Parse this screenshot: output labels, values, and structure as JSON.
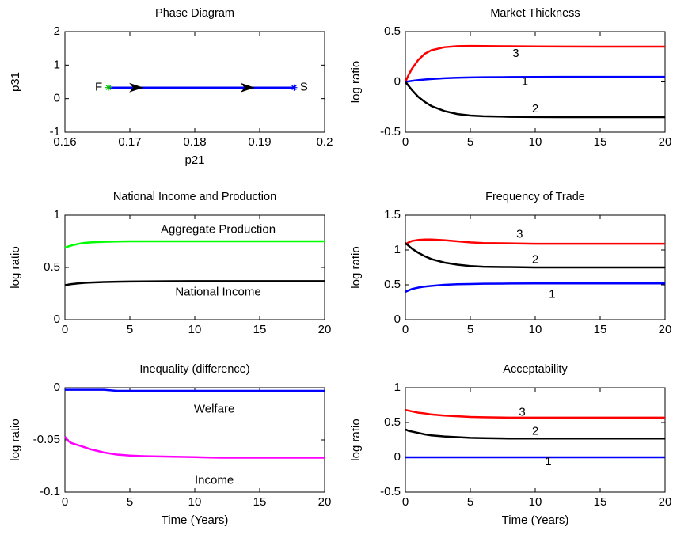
{
  "chart_data": [
    {
      "type": "line",
      "title": "Phase Diagram",
      "xlabel": "p21",
      "ylabel": "p31",
      "x": [
        0.1667,
        0.1953
      ],
      "xlim": [
        0.16,
        0.2
      ],
      "ylim": [
        -1,
        2
      ],
      "xticks": [
        0.16,
        0.17,
        0.18,
        0.19,
        0.2
      ],
      "yticks": [
        -1,
        0,
        1,
        2
      ],
      "series": [
        {
          "color": "#0000ff",
          "start_color": "#00c000",
          "marker": "star",
          "arrows": true,
          "values": [
            0.33,
            0.33
          ]
        }
      ],
      "annotations": [
        {
          "text": "F",
          "x": 0.1652,
          "y": 0.33
        },
        {
          "text": "S",
          "x": 0.1968,
          "y": 0.33
        }
      ]
    },
    {
      "type": "line",
      "title": "Market Thickness",
      "ylabel": "log ratio",
      "x": [
        0,
        0.25,
        0.5,
        1,
        1.5,
        2,
        3,
        4,
        5,
        6,
        8,
        10,
        12,
        15,
        20
      ],
      "xlim": [
        0,
        20
      ],
      "ylim": [
        -0.5,
        0.5
      ],
      "xticks": [
        0,
        5,
        10,
        15,
        20
      ],
      "yticks": [
        -0.5,
        0,
        0.5
      ],
      "series": [
        {
          "color": "#ff0000",
          "values": [
            0,
            0.07,
            0.13,
            0.22,
            0.28,
            0.315,
            0.345,
            0.355,
            0.357,
            0.356,
            0.354,
            0.352,
            0.351,
            0.35,
            0.35
          ]
        },
        {
          "color": "#0000ff",
          "values": [
            0,
            0.005,
            0.01,
            0.018,
            0.024,
            0.029,
            0.036,
            0.041,
            0.044,
            0.046,
            0.048,
            0.049,
            0.05,
            0.05,
            0.05
          ]
        },
        {
          "color": "#000000",
          "values": [
            0,
            -0.04,
            -0.08,
            -0.15,
            -0.2,
            -0.24,
            -0.29,
            -0.32,
            -0.335,
            -0.342,
            -0.347,
            -0.349,
            -0.35,
            -0.35,
            -0.35
          ]
        }
      ],
      "annotations": [
        {
          "text": "3",
          "x": 8.5,
          "y": 0.28
        },
        {
          "text": "1",
          "x": 9.2,
          "y": 0.0
        },
        {
          "text": "2",
          "x": 10,
          "y": -0.27
        }
      ]
    },
    {
      "type": "line",
      "title": "National Income and Production",
      "ylabel": "log ratio",
      "x": [
        0,
        0.25,
        0.5,
        1,
        1.5,
        2,
        3,
        4,
        5,
        6,
        8,
        10,
        12,
        15,
        20
      ],
      "xlim": [
        0,
        20
      ],
      "ylim": [
        0,
        1
      ],
      "xticks": [
        0,
        5,
        10,
        15,
        20
      ],
      "yticks": [
        0,
        0.5,
        1
      ],
      "series": [
        {
          "color": "#00ff00",
          "values": [
            0.69,
            0.7,
            0.71,
            0.725,
            0.735,
            0.74,
            0.745,
            0.748,
            0.75,
            0.75,
            0.75,
            0.75,
            0.75,
            0.75,
            0.75
          ]
        },
        {
          "color": "#000000",
          "values": [
            0.33,
            0.335,
            0.34,
            0.347,
            0.352,
            0.355,
            0.36,
            0.363,
            0.365,
            0.366,
            0.367,
            0.368,
            0.368,
            0.368,
            0.368
          ]
        }
      ],
      "annotations": [
        {
          "text": "Aggregate Production",
          "x": 11.8,
          "y": 0.86
        },
        {
          "text": "National Income",
          "x": 11.8,
          "y": 0.26
        }
      ]
    },
    {
      "type": "line",
      "title": "Frequency of Trade",
      "ylabel": "log ratio",
      "x": [
        0,
        0.25,
        0.5,
        1,
        1.5,
        2,
        3,
        4,
        5,
        6,
        8,
        10,
        12,
        15,
        20
      ],
      "xlim": [
        0,
        20
      ],
      "ylim": [
        0,
        1.5
      ],
      "xticks": [
        0,
        5,
        10,
        15,
        20
      ],
      "yticks": [
        0,
        0.5,
        1,
        1.5
      ],
      "series": [
        {
          "color": "#ff0000",
          "values": [
            1.08,
            1.11,
            1.13,
            1.145,
            1.15,
            1.15,
            1.14,
            1.125,
            1.11,
            1.1,
            1.095,
            1.09,
            1.09,
            1.09,
            1.09
          ]
        },
        {
          "color": "#000000",
          "values": [
            1.1,
            1.06,
            1.02,
            0.96,
            0.91,
            0.87,
            0.82,
            0.79,
            0.77,
            0.76,
            0.755,
            0.75,
            0.75,
            0.75,
            0.75
          ]
        },
        {
          "color": "#0000ff",
          "values": [
            0.4,
            0.42,
            0.44,
            0.46,
            0.475,
            0.485,
            0.5,
            0.508,
            0.512,
            0.515,
            0.518,
            0.52,
            0.52,
            0.52,
            0.52
          ]
        }
      ],
      "annotations": [
        {
          "text": "3",
          "x": 8.8,
          "y": 1.22
        },
        {
          "text": "2",
          "x": 10,
          "y": 0.86
        },
        {
          "text": "1",
          "x": 11.3,
          "y": 0.36
        }
      ]
    },
    {
      "type": "line",
      "title": "Inequality (difference)",
      "xlabel": "Time (Years)",
      "ylabel": "log ratio",
      "x": [
        0,
        0.25,
        0.5,
        1,
        1.5,
        2,
        3,
        4,
        5,
        6,
        8,
        10,
        12,
        15,
        20
      ],
      "xlim": [
        0,
        20
      ],
      "ylim": [
        -0.1,
        0
      ],
      "xticks": [
        0,
        5,
        10,
        15,
        20
      ],
      "yticks": [
        -0.1,
        -0.05,
        0
      ],
      "series": [
        {
          "color": "#0000ff",
          "values": [
            -0.002,
            -0.002,
            -0.002,
            -0.002,
            -0.002,
            -0.002,
            -0.002,
            -0.003,
            -0.003,
            -0.003,
            -0.003,
            -0.003,
            -0.003,
            -0.003,
            -0.003
          ]
        },
        {
          "color": "#ff00ff",
          "values": [
            -0.047,
            -0.051,
            -0.053,
            -0.055,
            -0.057,
            -0.059,
            -0.062,
            -0.064,
            -0.065,
            -0.0655,
            -0.066,
            -0.0665,
            -0.067,
            -0.067,
            -0.067
          ]
        }
      ],
      "annotations": [
        {
          "text": "Welfare",
          "x": 11.5,
          "y": -0.021
        },
        {
          "text": "Income",
          "x": 11.5,
          "y": -0.089
        }
      ]
    },
    {
      "type": "line",
      "title": "Acceptability",
      "xlabel": "Time (Years)",
      "ylabel": "log ratio",
      "x": [
        0,
        0.25,
        0.5,
        1,
        1.5,
        2,
        3,
        4,
        5,
        6,
        8,
        10,
        12,
        15,
        20
      ],
      "xlim": [
        0,
        20
      ],
      "ylim": [
        -0.5,
        1
      ],
      "xticks": [
        0,
        5,
        10,
        15,
        20
      ],
      "yticks": [
        -0.5,
        0,
        0.5,
        1
      ],
      "series": [
        {
          "color": "#ff0000",
          "values": [
            0.68,
            0.67,
            0.66,
            0.64,
            0.63,
            0.615,
            0.6,
            0.59,
            0.58,
            0.575,
            0.57,
            0.57,
            0.57,
            0.57,
            0.57
          ]
        },
        {
          "color": "#000000",
          "values": [
            0.4,
            0.38,
            0.37,
            0.35,
            0.33,
            0.315,
            0.3,
            0.29,
            0.28,
            0.275,
            0.27,
            0.27,
            0.27,
            0.27,
            0.27
          ]
        },
        {
          "color": "#0000ff",
          "values": [
            0,
            0,
            0,
            0,
            0,
            0,
            0,
            0,
            0,
            0,
            0,
            0,
            0,
            0,
            0
          ]
        }
      ],
      "annotations": [
        {
          "text": "3",
          "x": 9,
          "y": 0.64
        },
        {
          "text": "2",
          "x": 10,
          "y": 0.37
        },
        {
          "text": "1",
          "x": 11,
          "y": -0.07
        }
      ]
    }
  ]
}
